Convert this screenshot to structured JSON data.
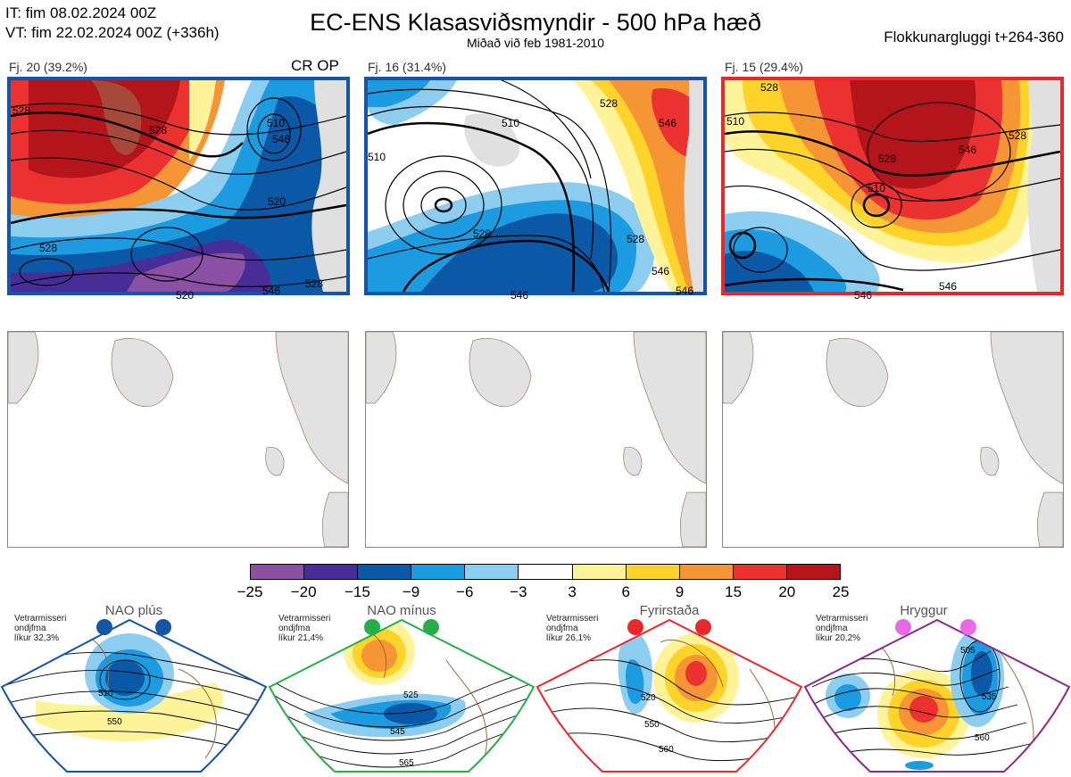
{
  "header": {
    "it_line": "IT: fim 08.02.2024 00Z",
    "vt_line": "VT: fim 22.02.2024 00Z  (+336h)",
    "title": "EC-ENS Klasasviðsmyndir - 500 hPa hæð",
    "subtitle": "Miðað við feb 1981-2010",
    "window": "Flokkunargluggi t+264-360"
  },
  "clusters": [
    {
      "label": "Fj. 20 (39.2%)",
      "frame_color": "#1455a5",
      "badge": "CR OP"
    },
    {
      "label": "Fj. 16 (31.4%)",
      "frame_color": "#1455a5",
      "badge": ""
    },
    {
      "label": "Fj. 15 (29.4%)",
      "frame_color": "#e8282a",
      "badge": ""
    }
  ],
  "colorbar": {
    "colors": [
      "#8b4fa3",
      "#482d96",
      "#0b59a6",
      "#1d9be0",
      "#8ccdf0",
      "#ffffff",
      "#fff39a",
      "#ffd42a",
      "#f59535",
      "#ec3131",
      "#b3151a"
    ],
    "ticks": [
      "−25",
      "−20",
      "−15",
      "−9",
      "−6",
      "−3",
      "3",
      "6",
      "9",
      "15",
      "20",
      "25"
    ]
  },
  "regimes": [
    {
      "name": "NAO plús",
      "color": "#1455a5",
      "info": [
        "Vetrarmisseri",
        "ondjfma",
        "líkur 32,3%"
      ]
    },
    {
      "name": "NAO mínus",
      "color": "#27ae48",
      "info": [
        "Vetrarmisseri",
        "ondjfma",
        "líkur 21,4%"
      ]
    },
    {
      "name": "Fyrirstaða",
      "color": "#e8282a",
      "info": [
        "Vetrarmisseri",
        "ondjfma",
        "líkur 26,1%"
      ]
    },
    {
      "name": "Hryggur",
      "color": "#e86ae8",
      "info": [
        "Vetrarmisseri",
        "ondjfma",
        "líkur 20,2%"
      ]
    }
  ],
  "contour_labels": {
    "c1": [
      "528",
      "528",
      "510",
      "546",
      "520",
      "528",
      "520",
      "546",
      "528"
    ],
    "c2": [
      "510",
      "528",
      "528",
      "546",
      "528",
      "546",
      "510",
      "546",
      "546"
    ],
    "c3": [
      "510",
      "528",
      "510",
      "528",
      "546",
      "528",
      "546",
      "546"
    ],
    "r1": [
      "510",
      "550"
    ],
    "r2": [
      "525",
      "545",
      "565"
    ],
    "r3": [
      "520",
      "550",
      "560"
    ],
    "r4": [
      "505",
      "535",
      "560"
    ]
  }
}
